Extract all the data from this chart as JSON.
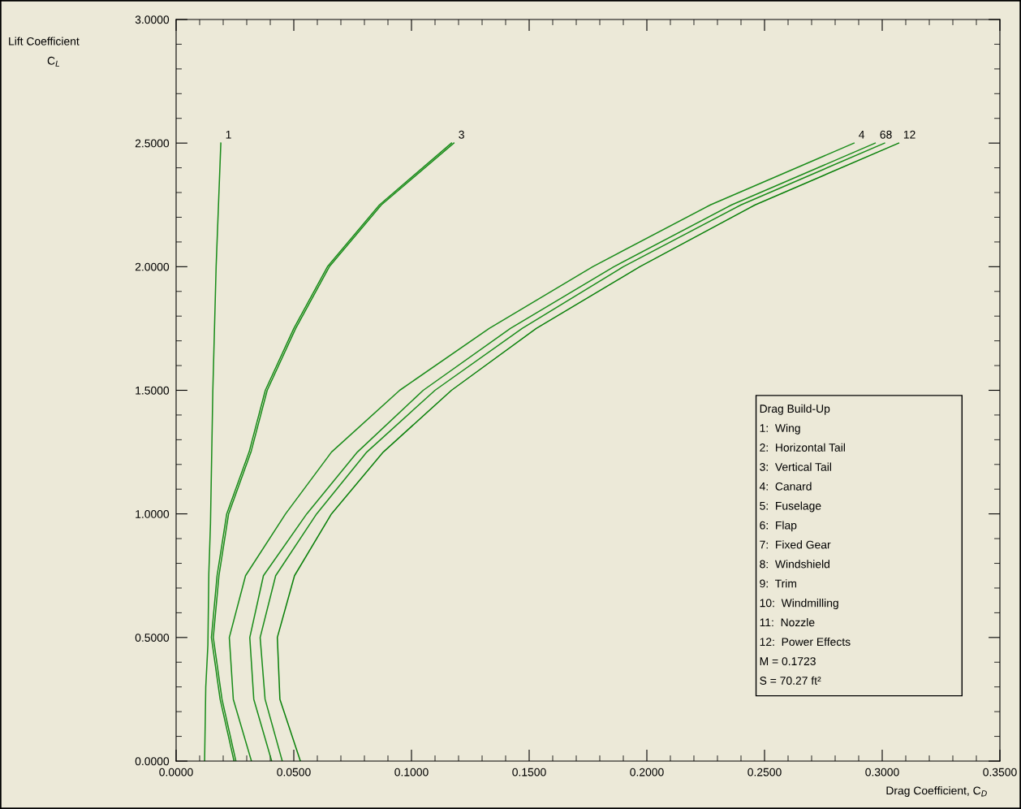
{
  "chart_data": {
    "type": "line",
    "xlabel": "Drag Coefficient, C$_{D}$",
    "ylabel": "Lift Coefficient\nC$_{L}$",
    "xlim": [
      0,
      0.35
    ],
    "ylim": [
      0,
      3.0
    ],
    "xticks": [
      {
        "value": 0,
        "label": "0.0000"
      },
      {
        "value": 0.01,
        "label": null
      },
      {
        "value": 0.02,
        "label": null
      },
      {
        "value": 0.03,
        "label": null
      },
      {
        "value": 0.04,
        "label": null
      },
      {
        "value": 0.05,
        "label": "0.0500"
      },
      {
        "value": 0.06,
        "label": null
      },
      {
        "value": 0.07,
        "label": null
      },
      {
        "value": 0.08,
        "label": null
      },
      {
        "value": 0.09,
        "label": null
      },
      {
        "value": 0.1,
        "label": "0.1000"
      },
      {
        "value": 0.11,
        "label": null
      },
      {
        "value": 0.12,
        "label": null
      },
      {
        "value": 0.13,
        "label": null
      },
      {
        "value": 0.14,
        "label": null
      },
      {
        "value": 0.15,
        "label": "0.1500"
      },
      {
        "value": 0.16,
        "label": null
      },
      {
        "value": 0.17,
        "label": null
      },
      {
        "value": 0.18,
        "label": null
      },
      {
        "value": 0.19,
        "label": null
      },
      {
        "value": 0.2,
        "label": "0.2000"
      },
      {
        "value": 0.21,
        "label": null
      },
      {
        "value": 0.22,
        "label": null
      },
      {
        "value": 0.23,
        "label": null
      },
      {
        "value": 0.24,
        "label": null
      },
      {
        "value": 0.25,
        "label": "0.2500"
      },
      {
        "value": 0.26,
        "label": null
      },
      {
        "value": 0.27,
        "label": null
      },
      {
        "value": 0.28,
        "label": null
      },
      {
        "value": 0.29,
        "label": null
      },
      {
        "value": 0.3,
        "label": "0.3000"
      },
      {
        "value": 0.31,
        "label": null
      },
      {
        "value": 0.32,
        "label": null
      },
      {
        "value": 0.33,
        "label": null
      },
      {
        "value": 0.34,
        "label": null
      },
      {
        "value": 0.35,
        "label": "0.3500"
      }
    ],
    "yticks": [
      {
        "value": 0,
        "label": "0.0000"
      },
      {
        "value": 0.1,
        "label": null
      },
      {
        "value": 0.2,
        "label": null
      },
      {
        "value": 0.3,
        "label": null
      },
      {
        "value": 0.4,
        "label": null
      },
      {
        "value": 0.5,
        "label": "0.5000"
      },
      {
        "value": 0.6,
        "label": null
      },
      {
        "value": 0.7,
        "label": null
      },
      {
        "value": 0.8,
        "label": null
      },
      {
        "value": 0.9,
        "label": null
      },
      {
        "value": 1.0,
        "label": "1.0000"
      },
      {
        "value": 1.1,
        "label": null
      },
      {
        "value": 1.2,
        "label": null
      },
      {
        "value": 1.3,
        "label": null
      },
      {
        "value": 1.4,
        "label": null
      },
      {
        "value": 1.5,
        "label": "1.5000"
      },
      {
        "value": 1.6,
        "label": null
      },
      {
        "value": 1.7,
        "label": null
      },
      {
        "value": 1.8,
        "label": null
      },
      {
        "value": 1.9,
        "label": null
      },
      {
        "value": 2.0,
        "label": "2.0000"
      },
      {
        "value": 2.1,
        "label": null
      },
      {
        "value": 2.2,
        "label": null
      },
      {
        "value": 2.3,
        "label": null
      },
      {
        "value": 2.4,
        "label": null
      },
      {
        "value": 2.5,
        "label": "2.5000"
      },
      {
        "value": 2.6,
        "label": null
      },
      {
        "value": 2.7,
        "label": null
      },
      {
        "value": 2.8,
        "label": null
      },
      {
        "value": 2.9,
        "label": null
      },
      {
        "value": 3.0,
        "label": "3.0000"
      }
    ],
    "grid": false,
    "marker": "none",
    "line_style": "solid",
    "series": [
      {
        "color": "#1a8c1a",
        "x": [
          0.0121,
          0.0126,
          0.0135,
          0.0139,
          0.0146,
          0.0156,
          0.017,
          0.019
        ],
        "values": [
          0,
          0.3,
          0.47,
          0.76,
          0.96,
          1.5,
          2.0,
          2.5
        ]
      },
      {
        "color": "#1a8c1a",
        "x": [
          0.0246,
          0.0187,
          0.015,
          0.0174,
          0.0215,
          0.031,
          0.0379,
          0.05,
          0.0643,
          0.0864,
          0.117
        ],
        "values": [
          0,
          0.25,
          0.5,
          0.75,
          1.0,
          1.25,
          1.5,
          1.75,
          2.0,
          2.25,
          2.5
        ]
      },
      {
        "color": "#1a8c1a",
        "x": [
          0.0254,
          0.0195,
          0.0158,
          0.0182,
          0.0223,
          0.0318,
          0.0387,
          0.0508,
          0.0651,
          0.0872,
          0.118
        ],
        "values": [
          0,
          0.25,
          0.5,
          0.75,
          1.0,
          1.25,
          1.5,
          1.75,
          2.0,
          2.25,
          2.5
        ]
      },
      {
        "color": "#1a8c1a",
        "x": [
          0.032,
          0.0243,
          0.0226,
          0.0295,
          0.0465,
          0.066,
          0.095,
          0.133,
          0.177,
          0.227,
          0.288
        ],
        "values": [
          0,
          0.25,
          0.5,
          0.75,
          1.0,
          1.25,
          1.5,
          1.75,
          2.0,
          2.25,
          2.5
        ]
      },
      {
        "color": "#1a8c1a",
        "x": [
          0.0406,
          0.033,
          0.0313,
          0.0371,
          0.0555,
          0.077,
          0.105,
          0.142,
          0.186,
          0.236,
          0.297
        ],
        "values": [
          0,
          0.25,
          0.5,
          0.75,
          1.0,
          1.25,
          1.5,
          1.75,
          2.0,
          2.25,
          2.5
        ]
      },
      {
        "color": "#1a8c1a",
        "x": [
          0.0451,
          0.0378,
          0.0357,
          0.0423,
          0.0597,
          0.081,
          0.11,
          0.147,
          0.19,
          0.24,
          0.301
        ],
        "values": [
          0,
          0.25,
          0.5,
          0.75,
          1.0,
          1.25,
          1.5,
          1.75,
          2.0,
          2.25,
          2.5
        ]
      },
      {
        "color": "#0a800a",
        "x": [
          0.0528,
          0.0441,
          0.043,
          0.0503,
          0.066,
          0.088,
          0.117,
          0.153,
          0.197,
          0.246,
          0.307
        ],
        "values": [
          0,
          0.25,
          0.5,
          0.75,
          1.0,
          1.25,
          1.5,
          1.75,
          2.0,
          2.25,
          2.5
        ]
      }
    ],
    "annotations": [
      {
        "text": "1",
        "x": 0.019,
        "y": 2.5
      },
      {
        "text": "3",
        "x": 0.118,
        "y": 2.5
      },
      {
        "text": "4",
        "x": 0.288,
        "y": 2.5
      },
      {
        "text": "68",
        "x": 0.297,
        "y": 2.5
      },
      {
        "text": "12",
        "x": 0.307,
        "y": 2.5
      },
      "Drag Build-Up",
      "1:  Wing",
      "2:  Horizontal Tail",
      "3:  Vertical Tail",
      "4:  Canard",
      "5:  Fuselage",
      "6:  Flap",
      "7:  Fixed Gear",
      "8:  Windshield",
      "9:  Trim",
      "10:  Windmilling",
      "11:  Nozzle",
      "12:  Power Effects",
      "M = 0.1723",
      "S = 70.27 ft²"
    ]
  }
}
